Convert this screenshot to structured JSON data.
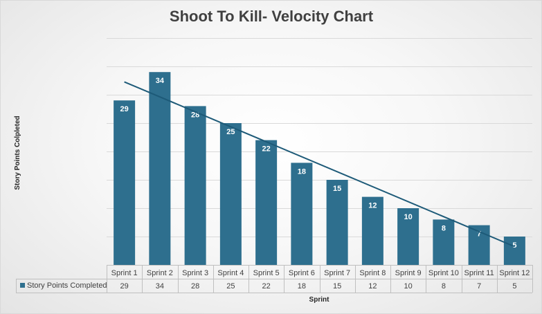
{
  "colors": {
    "bar": "#2e6f8e",
    "trendline": "#1d5a78",
    "gridline": "#d9d9d9",
    "table_border": "#bfbfbf",
    "text": "#404040"
  },
  "chart_data": {
    "type": "bar",
    "title": "Shoot To Kill- Velocity Chart",
    "xlabel": "Sprint",
    "ylabel": "Story Points Colpleted",
    "categories": [
      "Sprint 1",
      "Sprint 2",
      "Sprint 3",
      "Sprint 4",
      "Sprint 5",
      "Sprint 6",
      "Sprint 7",
      "Sprint 8",
      "Sprint 9",
      "Sprint 10",
      "Sprint 11",
      "Sprint 12"
    ],
    "series": [
      {
        "name": "Story Points Completed",
        "values": [
          29,
          34,
          28,
          25,
          22,
          18,
          15,
          12,
          10,
          8,
          7,
          5
        ],
        "data_labels": true
      }
    ],
    "trendline": "linear",
    "ylim": [
      0,
      40
    ],
    "y_gridline_step": 5,
    "y_tick_labels_shown": false,
    "gridlines": true,
    "data_table": true,
    "legend": "data-table"
  }
}
